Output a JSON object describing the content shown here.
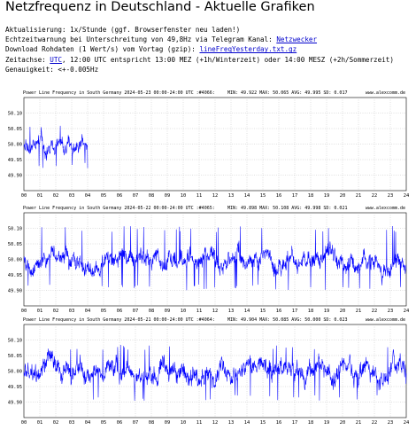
{
  "page": {
    "title": "Netzfrequenz in Deutschland - Aktuelle Grafiken",
    "lines": {
      "update_text": "Aktualisierung: 1x/Stunde (ggf. Browserfenster neu laden!)",
      "warning_prefix": "Echtzeitwarnung bei Unterschreitung von 49,8Hz via Telegram Kanal: ",
      "warning_link": "Netzwecker",
      "download_prefix": "Download Rohdaten (1 Wert/s) vom Vortag (gzip): ",
      "download_link": "lineFreqYesterday.txt.gz",
      "time_prefix": "Zeitachse: ",
      "time_link": "UTC",
      "time_suffix": ", 12:00 UTC entspricht 13:00 MEZ (+1h/Winterzeit) oder 14:00 MESZ (+2h/Sommerzeit)",
      "accuracy": "Genauigkeit: <+-0.005Hz"
    }
  },
  "charts": [
    {
      "header": "Power Line Frequency in South Germany 2024-05-23 00:00-24:00 UTC :#4066:",
      "stats": "MIN: 49.922 MAX: 50.065 AVG: 49.995 SD: 0.017",
      "site": "www.alexcomm.de",
      "chart_data": {
        "type": "line",
        "date": "2024-05-23",
        "x_range_hours": [
          0,
          4
        ],
        "min": 49.922,
        "max": 50.065,
        "avg": 49.995,
        "sd": 0.017,
        "ylim": [
          49.85,
          50.15
        ],
        "yticks": [
          "50.10",
          "50.05",
          "50.00",
          "49.95",
          "49.90"
        ],
        "xticks": [
          "00",
          "01",
          "02",
          "03",
          "04",
          "05",
          "06",
          "07",
          "08",
          "09",
          "10",
          "11",
          "12",
          "13",
          "14",
          "15",
          "16",
          "17",
          "18",
          "19",
          "20",
          "21",
          "22",
          "23",
          "24"
        ],
        "line_color": "#0000ff",
        "grid": true
      }
    },
    {
      "header": "Power Line Frequency in South Germany 2024-05-22 00:00-24:00 UTC :#4065:",
      "stats": "MIN: 49.898 MAX: 50.108 AVG: 49.998 SD: 0.021",
      "site": "www.alexcomm.de",
      "chart_data": {
        "type": "line",
        "date": "2024-05-22",
        "x_range_hours": [
          0,
          24
        ],
        "min": 49.898,
        "max": 50.108,
        "avg": 49.998,
        "sd": 0.021,
        "ylim": [
          49.85,
          50.15
        ],
        "yticks": [
          "50.10",
          "50.05",
          "50.00",
          "49.95",
          "49.90"
        ],
        "xticks": [
          "00",
          "01",
          "02",
          "03",
          "04",
          "05",
          "06",
          "07",
          "08",
          "09",
          "10",
          "11",
          "12",
          "13",
          "14",
          "15",
          "16",
          "17",
          "18",
          "19",
          "20",
          "21",
          "22",
          "23",
          "24"
        ],
        "line_color": "#0000ff",
        "grid": true
      }
    },
    {
      "header": "Power Line Frequency in South Germany 2024-05-21 00:00-24:00 UTC :#4064:",
      "stats": "MIN: 49.904 MAX: 50.085 AVG: 50.000 SD: 0.023",
      "site": "www.alexcomm.de",
      "chart_data": {
        "type": "line",
        "date": "2024-05-21",
        "x_range_hours": [
          0,
          24
        ],
        "min": 49.904,
        "max": 50.085,
        "avg": 50.0,
        "sd": 0.023,
        "ylim": [
          49.85,
          50.15
        ],
        "yticks": [
          "50.10",
          "50.05",
          "50.00",
          "49.95",
          "49.90"
        ],
        "xticks": [
          "00",
          "01",
          "02",
          "03",
          "04",
          "05",
          "06",
          "07",
          "08",
          "09",
          "10",
          "11",
          "12",
          "13",
          "14",
          "15",
          "16",
          "17",
          "18",
          "19",
          "20",
          "21",
          "22",
          "23",
          "24"
        ],
        "line_color": "#0000ff",
        "grid": true
      }
    }
  ]
}
